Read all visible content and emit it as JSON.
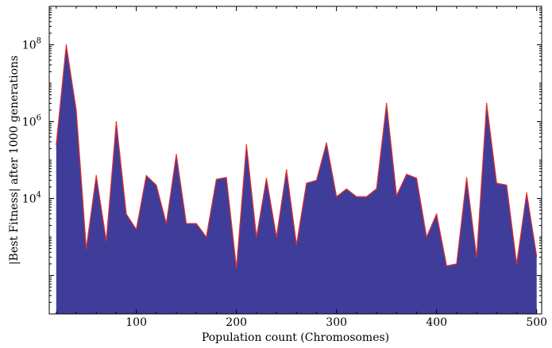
{
  "chart_data": {
    "type": "area",
    "xlabel": "Population count (Chromosomes)",
    "ylabel": "|Best Fitness| after 1000 generations",
    "x_scale": "linear",
    "y_scale": "log",
    "xlim": [
      13,
      505
    ],
    "ylim": [
      10,
      1000000000
    ],
    "x_ticks": [
      100,
      200,
      300,
      400,
      500
    ],
    "y_ticks": [
      {
        "value": 10000,
        "base": "10",
        "exp": "4"
      },
      {
        "value": 1000000,
        "base": "10",
        "exp": "6"
      },
      {
        "value": 100000000,
        "base": "10",
        "exp": "8"
      }
    ],
    "grid": false,
    "fill_color": "#3f3d99",
    "line_color": "#e8302a",
    "series": [
      {
        "x": [
          20,
          30,
          40,
          50,
          60,
          70,
          80,
          90,
          100,
          110,
          120,
          130,
          140,
          150,
          160,
          170,
          180,
          190,
          200,
          210,
          220,
          230,
          240,
          250,
          260,
          270,
          280,
          290,
          300,
          310,
          320,
          330,
          340,
          350,
          360,
          370,
          380,
          390,
          400,
          410,
          420,
          430,
          440,
          450,
          460,
          470,
          480,
          490,
          500
        ],
        "y": [
          251189,
          100000000,
          1995262,
          501,
          39811,
          794,
          1000000,
          3981,
          1585,
          39811,
          22387,
          2239,
          141254,
          2239,
          2239,
          1000,
          31623,
          35481,
          158,
          251189,
          1000,
          33497,
          1000,
          56234,
          631,
          25119,
          30000,
          281838,
          11220,
          17783,
          11220,
          11220,
          18000,
          3000000,
          12000,
          43000,
          34000,
          1000,
          3981,
          178,
          200,
          35000,
          300,
          3000000,
          25119,
          22387,
          200,
          14125,
          316
        ]
      }
    ]
  }
}
